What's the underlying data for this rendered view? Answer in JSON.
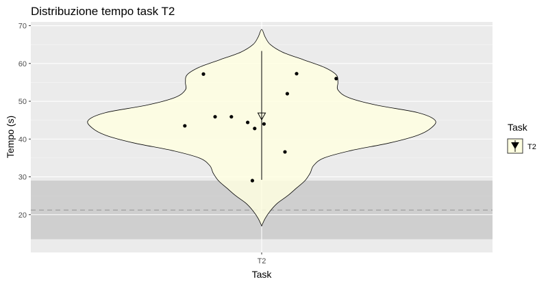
{
  "chart_data": {
    "type": "violin",
    "title": "Distribuzione tempo task T2",
    "xlabel": "Task",
    "ylabel": "Tempo (s)",
    "categories": [
      "T2"
    ],
    "ylim": [
      10,
      71
    ],
    "yticks": [
      20,
      30,
      40,
      50,
      60,
      70
    ],
    "grid": true,
    "background_color": "#ebebeb",
    "violin_fill": "#ffffe0",
    "reference_band": {
      "ymin": 13.5,
      "ymax": 29,
      "color": "#bebebe"
    },
    "reference_line": {
      "y": 21.2,
      "style": "dashed",
      "color": "#a6a6a6"
    },
    "violin_range": [
      17,
      69
    ],
    "density_profile": [
      {
        "y": 17,
        "w": 0.0
      },
      {
        "y": 19,
        "w": 0.02
      },
      {
        "y": 21,
        "w": 0.05
      },
      {
        "y": 23,
        "w": 0.09
      },
      {
        "y": 25,
        "w": 0.15
      },
      {
        "y": 27,
        "w": 0.2
      },
      {
        "y": 29,
        "w": 0.25
      },
      {
        "y": 31,
        "w": 0.28
      },
      {
        "y": 33,
        "w": 0.3
      },
      {
        "y": 35,
        "w": 0.36
      },
      {
        "y": 37,
        "w": 0.52
      },
      {
        "y": 39,
        "w": 0.74
      },
      {
        "y": 41,
        "w": 0.9
      },
      {
        "y": 43,
        "w": 0.98
      },
      {
        "y": 45,
        "w": 1.0
      },
      {
        "y": 47,
        "w": 0.9
      },
      {
        "y": 49,
        "w": 0.66
      },
      {
        "y": 51,
        "w": 0.5
      },
      {
        "y": 53,
        "w": 0.44
      },
      {
        "y": 55,
        "w": 0.44
      },
      {
        "y": 57,
        "w": 0.43
      },
      {
        "y": 59,
        "w": 0.36
      },
      {
        "y": 61,
        "w": 0.24
      },
      {
        "y": 63,
        "w": 0.12
      },
      {
        "y": 65,
        "w": 0.05
      },
      {
        "y": 67,
        "w": 0.02
      },
      {
        "y": 69,
        "w": 0.0
      }
    ],
    "points": [
      {
        "x": -0.33,
        "y": 43.5
      },
      {
        "x": -0.25,
        "y": 57.2
      },
      {
        "x": -0.2,
        "y": 45.9
      },
      {
        "x": -0.13,
        "y": 45.9
      },
      {
        "x": -0.06,
        "y": 44.4
      },
      {
        "x": -0.03,
        "y": 42.8
      },
      {
        "x": -0.04,
        "y": 29.0
      },
      {
        "x": 0.01,
        "y": 44.0
      },
      {
        "x": 0.1,
        "y": 36.6
      },
      {
        "x": 0.11,
        "y": 52.0
      },
      {
        "x": 0.15,
        "y": 57.3
      },
      {
        "x": 0.32,
        "y": 56.0
      }
    ],
    "mean_marker": {
      "y": 46.0,
      "shape": "triangle-down"
    },
    "error_bar": {
      "ymin": 29.2,
      "ymax": 63.3
    },
    "legend": {
      "title": "Task",
      "entries": [
        "T2"
      ],
      "position": "right"
    }
  }
}
